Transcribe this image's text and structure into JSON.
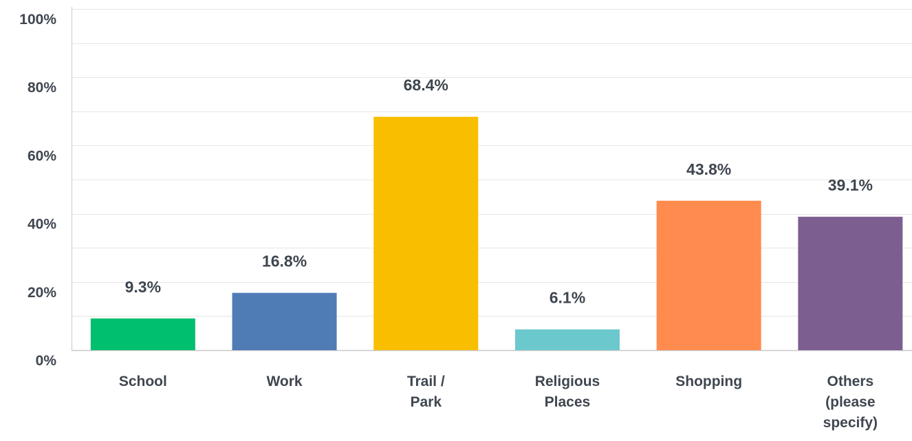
{
  "chart_data": {
    "type": "bar",
    "categories": [
      "School",
      "Work",
      "Trail / Park",
      "Religious Places",
      "Shopping",
      "Others (please specify)"
    ],
    "category_lines": [
      [
        "School"
      ],
      [
        "Work"
      ],
      [
        "Trail /",
        "Park"
      ],
      [
        "Religious",
        "Places"
      ],
      [
        "Shopping"
      ],
      [
        "Others",
        "(please",
        "specify)"
      ]
    ],
    "values": [
      9.3,
      16.8,
      68.4,
      6.1,
      43.8,
      39.1
    ],
    "data_labels": [
      "9.3%",
      "16.8%",
      "68.4%",
      "6.1%",
      "43.8%",
      "39.1%"
    ],
    "colors": [
      "#00bf6f",
      "#507cb6",
      "#f9be00",
      "#6bc8cd",
      "#ff8b4f",
      "#7d5e90"
    ],
    "ylim": [
      0,
      100
    ],
    "yticks": [
      0,
      20,
      40,
      60,
      80,
      100
    ],
    "ytick_labels": [
      "0%",
      "20%",
      "40%",
      "60%",
      "80%",
      "100%"
    ],
    "grid": true,
    "grid_color": "#e6e6e6",
    "axis_color": "#c8c8c8",
    "text_color": "#3f4650"
  }
}
